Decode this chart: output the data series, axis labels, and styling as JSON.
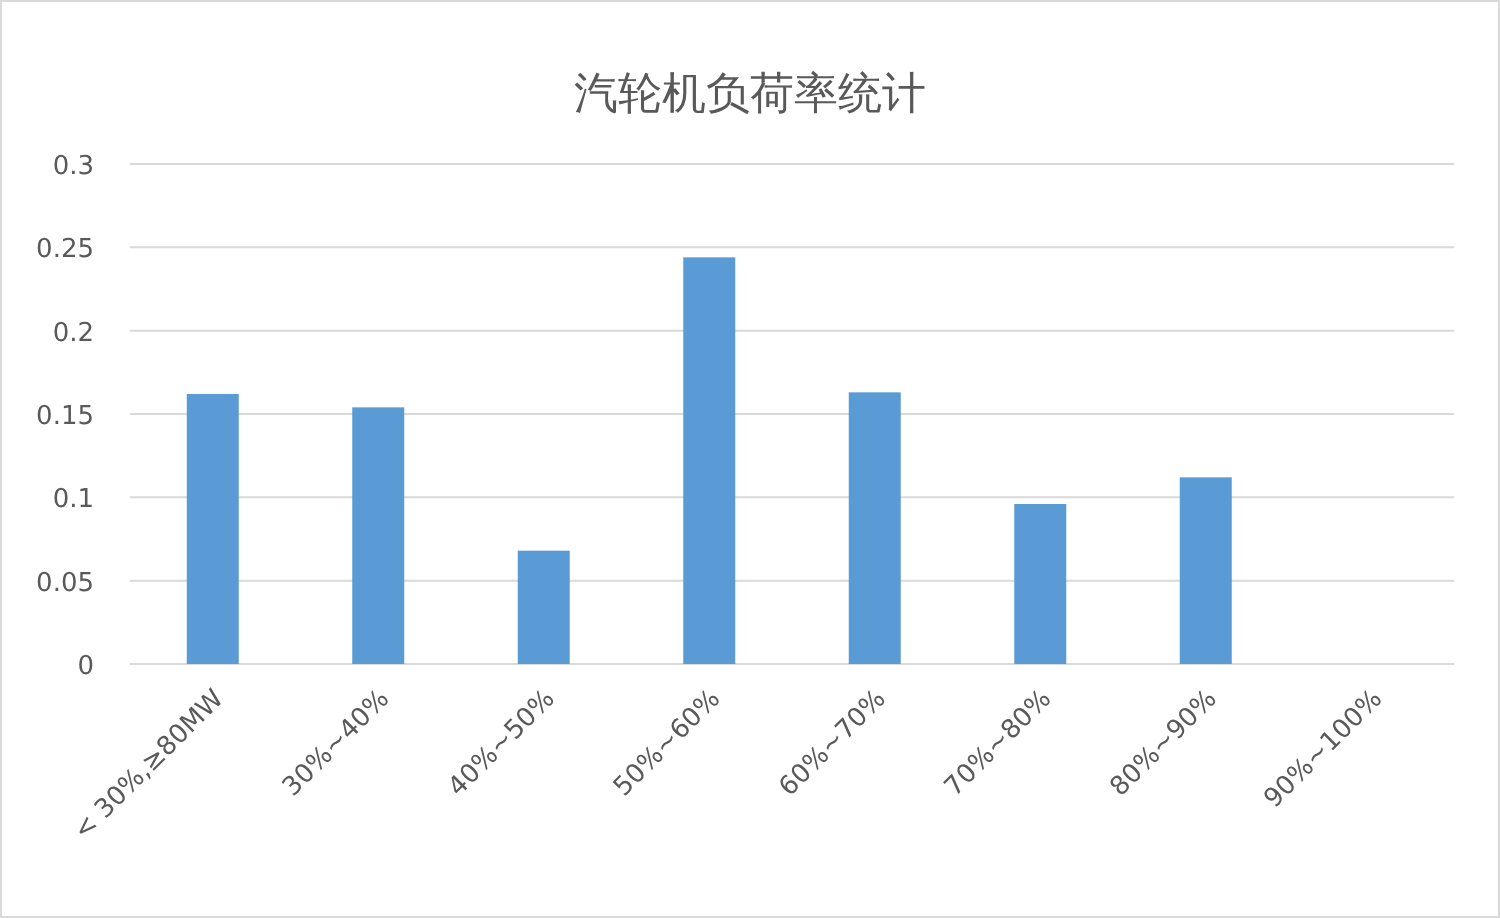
{
  "chart_data": {
    "type": "bar",
    "title": "汽轮机负荷率统计",
    "categories": [
      "< 30%,≥80MW",
      "30%~40%",
      "40%~50%",
      "50%~60%",
      "60%~70%",
      "70%~80%",
      "80%~90%",
      "90%~100%"
    ],
    "values": [
      0.162,
      0.154,
      0.068,
      0.244,
      0.163,
      0.096,
      0.112,
      0
    ],
    "color": "#5b9bd5",
    "ylim": [
      0,
      0.3
    ],
    "yticks": [
      0,
      0.05,
      0.1,
      0.15,
      0.2,
      0.25,
      0.3
    ],
    "grid": "y"
  }
}
